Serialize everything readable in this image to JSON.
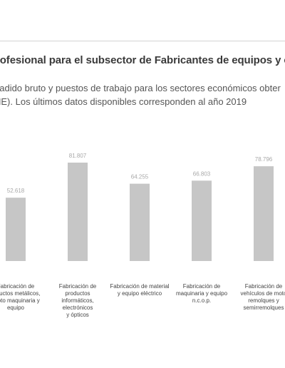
{
  "header": {
    "title": "rofesional para el subsector de Fabricantes de equipos y c",
    "subtitle_line1": "ñadido bruto y puestos de trabajo para los sectores económicos obter",
    "subtitle_line2": "NE). Los últimos datos disponibles corresponden al año 2019"
  },
  "chart_data": {
    "type": "bar",
    "categories": [
      [
        "Fabricación de",
        "roductos metálicos,",
        "cepto maquinaria y",
        "equipo"
      ],
      [
        "Fabricación de",
        "productos",
        "informáticos,",
        "electrónicos",
        "y ópticos"
      ],
      [
        "Fabricación de material",
        "y equipo eléctrico"
      ],
      [
        "Fabricación de",
        "maquinaria y equipo",
        "n.c.o.p."
      ],
      [
        "Fabricación de",
        "vehículos de moto",
        "remolques y",
        "semirremolques"
      ]
    ],
    "values": [
      52618,
      81807,
      64255,
      66803,
      78796
    ],
    "value_labels": [
      "52.618",
      "81.807",
      "64.255",
      "66.803",
      "78.796"
    ],
    "bar_color": "#c6c6c6",
    "label_color": "#a8a8a8",
    "grid": false,
    "legend": "none"
  }
}
